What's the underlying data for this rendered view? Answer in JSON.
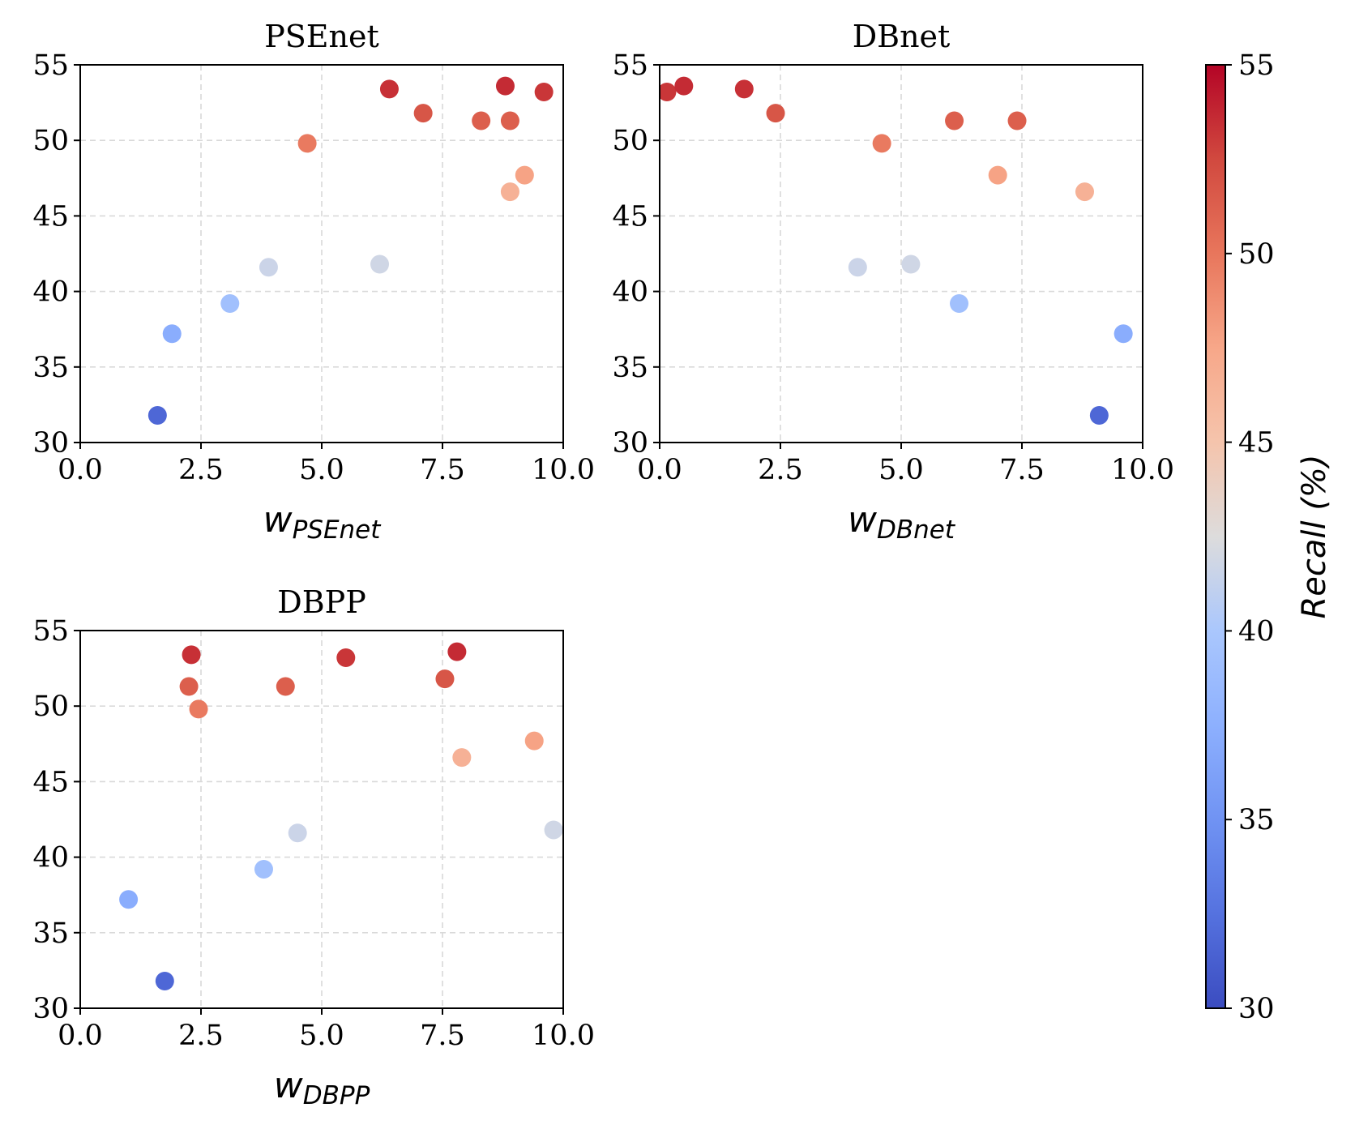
{
  "chart_data": {
    "type": "scatter",
    "colormap": "coolwarm",
    "recall": [
      31.8,
      37.2,
      39.2,
      41.6,
      41.8,
      46.6,
      47.7,
      49.8,
      51.3,
      51.3,
      51.8,
      53.2,
      53.4,
      53.6
    ],
    "axes": [
      {
        "title": "PSEnet",
        "xlabel_main": "w",
        "xlabel_sub": "PSEnet",
        "xlim": [
          0,
          10
        ],
        "ylim": [
          30,
          55
        ],
        "grid": true,
        "xticks": [
          "0.0",
          "2.5",
          "5.0",
          "7.5",
          "10.0"
        ],
        "yticks": [
          "30",
          "35",
          "40",
          "45",
          "50",
          "55"
        ],
        "x": [
          1.6,
          1.9,
          3.1,
          3.9,
          6.2,
          8.9,
          9.2,
          4.7,
          8.3,
          8.9,
          7.1,
          9.6,
          6.4,
          8.8
        ]
      },
      {
        "title": "DBnet",
        "xlabel_main": "w",
        "xlabel_sub": "DBnet",
        "xlim": [
          0,
          10
        ],
        "ylim": [
          30,
          55
        ],
        "grid": true,
        "xticks": [
          "0.0",
          "2.5",
          "5.0",
          "7.5",
          "10.0"
        ],
        "yticks": [
          "30",
          "35",
          "40",
          "45",
          "50",
          "55"
        ],
        "x": [
          9.1,
          9.6,
          6.2,
          4.1,
          5.2,
          8.8,
          7.0,
          4.6,
          6.1,
          7.4,
          2.4,
          0.15,
          1.75,
          0.5
        ]
      },
      {
        "title": "DBPP",
        "xlabel_main": "w",
        "xlabel_sub": "DBPP",
        "xlim": [
          0,
          10
        ],
        "ylim": [
          30,
          55
        ],
        "grid": true,
        "xticks": [
          "0.0",
          "2.5",
          "5.0",
          "7.5",
          "10.0"
        ],
        "yticks": [
          "30",
          "35",
          "40",
          "45",
          "50",
          "55"
        ],
        "x": [
          1.75,
          1.0,
          3.8,
          4.5,
          9.8,
          7.9,
          9.4,
          2.45,
          2.25,
          4.25,
          7.55,
          5.5,
          2.3,
          7.8
        ]
      }
    ],
    "colorbar": {
      "label": "Recall (%)",
      "range": [
        30,
        55
      ],
      "ticks": [
        "30",
        "35",
        "40",
        "45",
        "50",
        "55"
      ],
      "placement": "right"
    }
  }
}
